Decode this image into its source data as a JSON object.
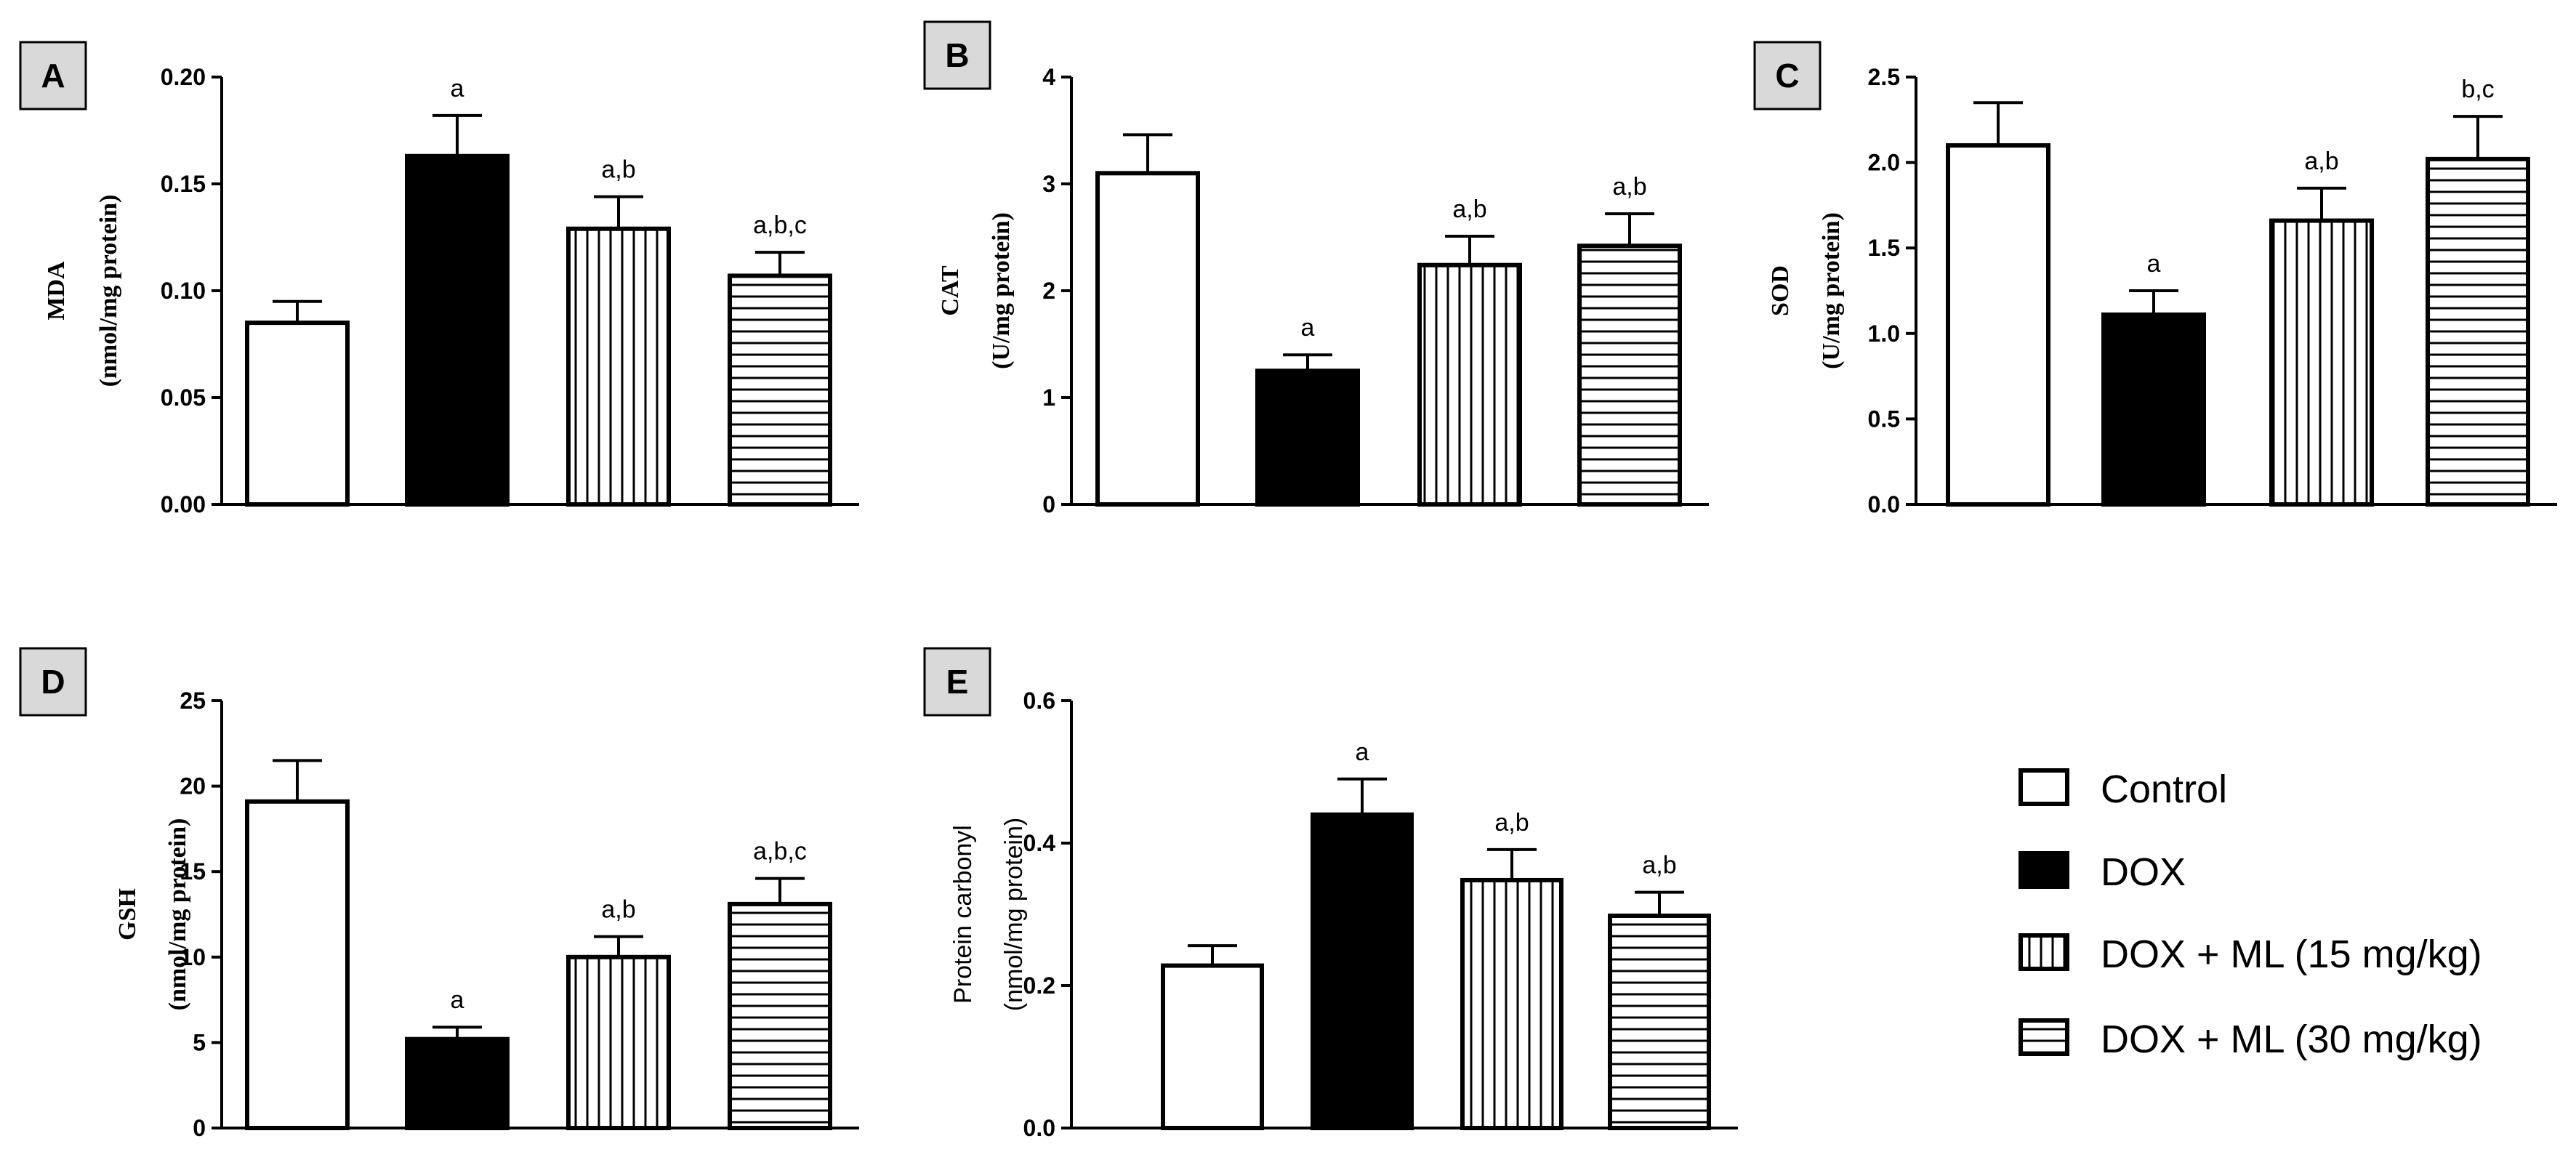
{
  "chart_data": [
    {
      "type": "bar",
      "panel": "A",
      "ylabel_lines": [
        "MDA",
        "(nmol/mg protein)"
      ],
      "yticks": [
        "0.00",
        "0.05",
        "0.10",
        "0.15",
        "0.20"
      ],
      "ylim": [
        0,
        0.2
      ],
      "categories": [
        "Control",
        "DOX",
        "DOX + ML (15 mg/kg)",
        "DOX + ML (30 mg/kg)"
      ],
      "values": [
        0.085,
        0.163,
        0.129,
        0.107
      ],
      "errors": [
        0.01,
        0.019,
        0.015,
        0.011
      ],
      "annotations": [
        "",
        "a",
        "a,b",
        "a,b,c"
      ]
    },
    {
      "type": "bar",
      "panel": "B",
      "ylabel_lines": [
        "CAT",
        "(U/mg protein)"
      ],
      "yticks": [
        "0",
        "1",
        "2",
        "3",
        "4"
      ],
      "ylim": [
        0,
        4
      ],
      "categories": [
        "Control",
        "DOX",
        "DOX + ML (15 mg/kg)",
        "DOX + ML (30 mg/kg)"
      ],
      "values": [
        3.1,
        1.25,
        2.24,
        2.42
      ],
      "errors": [
        0.36,
        0.15,
        0.27,
        0.3
      ],
      "annotations": [
        "",
        "a",
        "a,b",
        "a,b"
      ]
    },
    {
      "type": "bar",
      "panel": "C",
      "ylabel_lines": [
        "SOD",
        "(U/mg protein)"
      ],
      "yticks": [
        "0.0",
        "0.5",
        "1.0",
        "1.5",
        "2.0",
        "2.5"
      ],
      "ylim": [
        0,
        2.5
      ],
      "categories": [
        "Control",
        "DOX",
        "DOX + ML (15 mg/kg)",
        "DOX + ML (30 mg/kg)"
      ],
      "values": [
        2.1,
        1.11,
        1.66,
        2.02
      ],
      "errors": [
        0.25,
        0.14,
        0.19,
        0.25
      ],
      "annotations": [
        "",
        "a",
        "a,b",
        "b,c"
      ]
    },
    {
      "type": "bar",
      "panel": "D",
      "ylabel_lines": [
        "GSH",
        "(nmol/mg protein)"
      ],
      "yticks": [
        "0",
        "5",
        "10",
        "15",
        "20",
        "25"
      ],
      "ylim": [
        0,
        25
      ],
      "categories": [
        "Control",
        "DOX",
        "DOX + ML (15 mg/kg)",
        "DOX + ML (30 mg/kg)"
      ],
      "values": [
        19.1,
        5.2,
        10.0,
        13.1
      ],
      "errors": [
        2.4,
        0.7,
        1.2,
        1.5
      ],
      "annotations": [
        "",
        "a",
        "a,b",
        "a,b,c"
      ]
    },
    {
      "type": "bar",
      "panel": "E",
      "ylabel_lines": [
        "Protein carbonyl",
        "(nmol/mg protein)"
      ],
      "yticks": [
        "0.0",
        "0.2",
        "0.4",
        "0.6"
      ],
      "ylim": [
        0,
        0.6
      ],
      "categories": [
        "Control",
        "DOX",
        "DOX + ML (15 mg/kg)",
        "DOX + ML (30 mg/kg)"
      ],
      "values": [
        0.228,
        0.44,
        0.348,
        0.298
      ],
      "errors": [
        0.028,
        0.05,
        0.043,
        0.033
      ],
      "annotations": [
        "",
        "a",
        "a,b",
        "a,b"
      ]
    }
  ],
  "legend": {
    "items": [
      {
        "label": "Control",
        "pattern": "empty"
      },
      {
        "label": "DOX",
        "pattern": "solid"
      },
      {
        "label": "DOX + ML (15 mg/kg)",
        "pattern": "vertical-stripes"
      },
      {
        "label": "DOX + ML (30 mg/kg)",
        "pattern": "horizontal-stripes"
      }
    ]
  }
}
